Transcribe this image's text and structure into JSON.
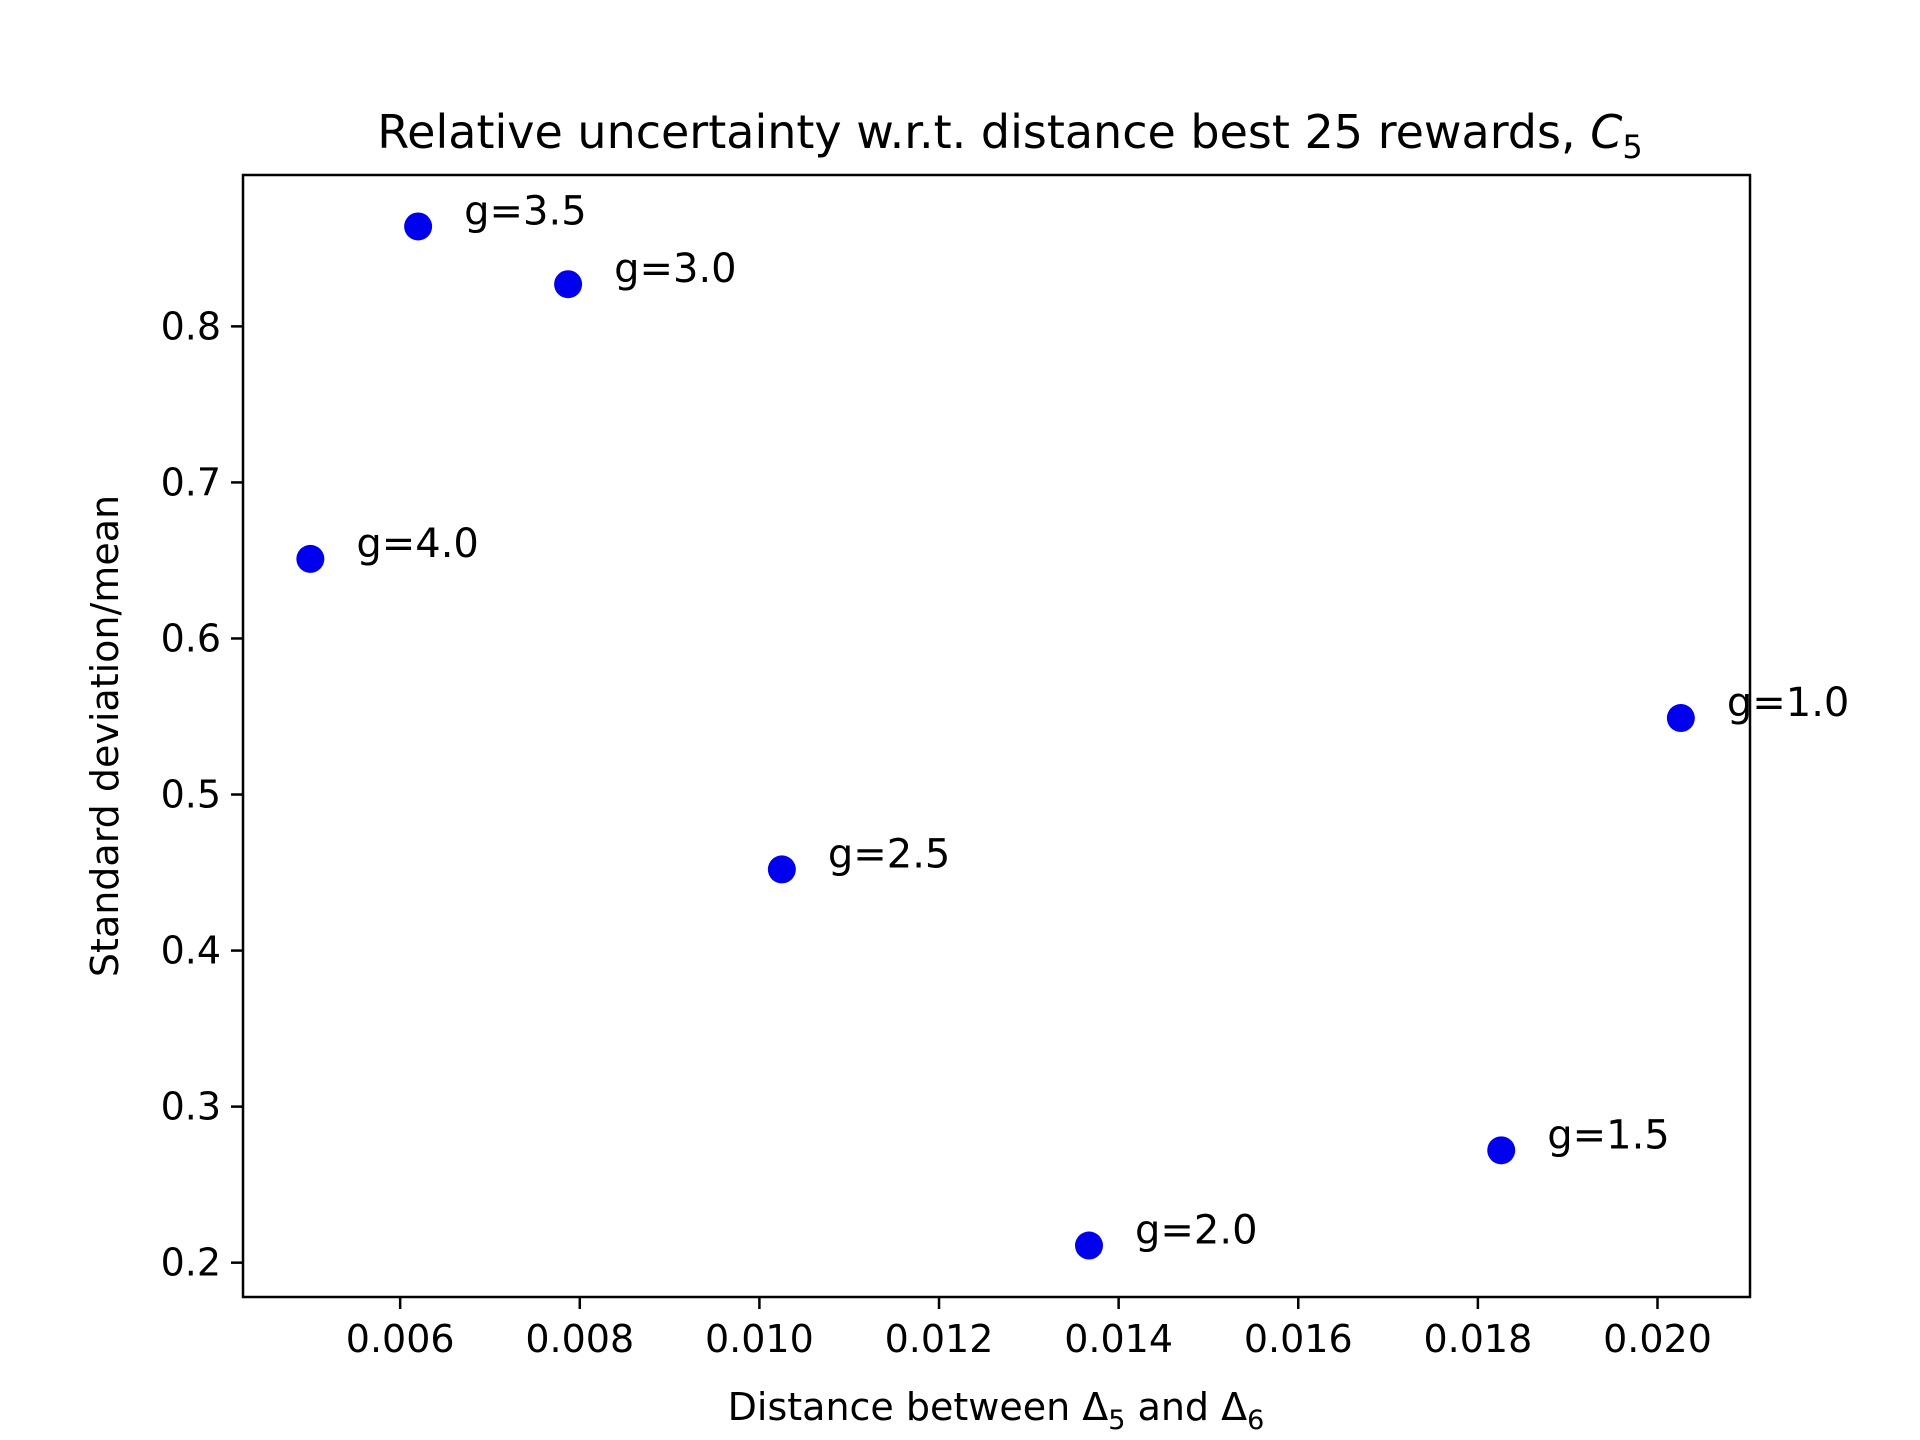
{
  "chart_data": {
    "type": "scatter",
    "title": {
      "main": "Relative uncertainty w.r.t. distance best 25 rewards, ",
      "symbol": "C",
      "subscript": "5"
    },
    "xlabel": {
      "prefix": "Distance between ",
      "sym1": "Δ",
      "sub1": "5",
      "middle": " and ",
      "sym2": "Δ",
      "sub2": "6"
    },
    "ylabel": "Standard deviation/mean",
    "xlim": [
      0.00425,
      0.02103
    ],
    "ylim": [
      0.178,
      0.897
    ],
    "xticks": [
      {
        "value": 0.006,
        "label": "0.006"
      },
      {
        "value": 0.008,
        "label": "0.008"
      },
      {
        "value": 0.01,
        "label": "0.010"
      },
      {
        "value": 0.012,
        "label": "0.012"
      },
      {
        "value": 0.014,
        "label": "0.014"
      },
      {
        "value": 0.016,
        "label": "0.016"
      },
      {
        "value": 0.018,
        "label": "0.018"
      },
      {
        "value": 0.02,
        "label": "0.020"
      }
    ],
    "yticks": [
      {
        "value": 0.2,
        "label": "0.2"
      },
      {
        "value": 0.3,
        "label": "0.3"
      },
      {
        "value": 0.4,
        "label": "0.4"
      },
      {
        "value": 0.5,
        "label": "0.5"
      },
      {
        "value": 0.6,
        "label": "0.6"
      },
      {
        "value": 0.7,
        "label": "0.7"
      },
      {
        "value": 0.8,
        "label": "0.8"
      }
    ],
    "grid": false,
    "marker_color": "#0000ee",
    "points": [
      {
        "x": 0.005,
        "y": 0.651,
        "label": "g=4.0"
      },
      {
        "x": 0.0062,
        "y": 0.864,
        "label": "g=3.5"
      },
      {
        "x": 0.00787,
        "y": 0.827,
        "label": "g=3.0"
      },
      {
        "x": 0.01025,
        "y": 0.452,
        "label": "g=2.5"
      },
      {
        "x": 0.01367,
        "y": 0.211,
        "label": "g=2.0"
      },
      {
        "x": 0.01826,
        "y": 0.272,
        "label": "g=1.5"
      },
      {
        "x": 0.02026,
        "y": 0.549,
        "label": "g=1.0"
      }
    ]
  }
}
